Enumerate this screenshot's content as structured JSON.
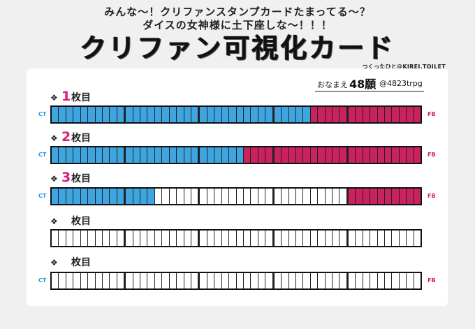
{
  "header": {
    "line1": "みんな〜！クリファンスタンプカードたまってる〜？",
    "line2": "ダイスの女神様に土下座しな〜！！！",
    "title": "クリファン可視化カード",
    "credit": "つくったひと@KIREI.TOILET"
  },
  "name_box": {
    "label": "おなまえ",
    "value": "48願",
    "handle": "@4823trpg"
  },
  "end_labels": {
    "ct": "CT",
    "fb": "FB"
  },
  "row_mark": "❖",
  "row_suffix": "枚目",
  "cells_per_row": 50,
  "group_size": 10,
  "colors": {
    "ct": "#3fa5e0",
    "fb": "#c9225f",
    "number": "#e0197d"
  },
  "rows": [
    {
      "number": "1",
      "ct_filled": 35,
      "fb_filled": 15
    },
    {
      "number": "2",
      "ct_filled": 26,
      "fb_filled": 24
    },
    {
      "number": "3",
      "ct_filled": 14,
      "fb_filled": 10
    },
    {
      "number": "",
      "ct_filled": 0,
      "fb_filled": 0
    },
    {
      "number": "",
      "ct_filled": 0,
      "fb_filled": 0
    }
  ]
}
